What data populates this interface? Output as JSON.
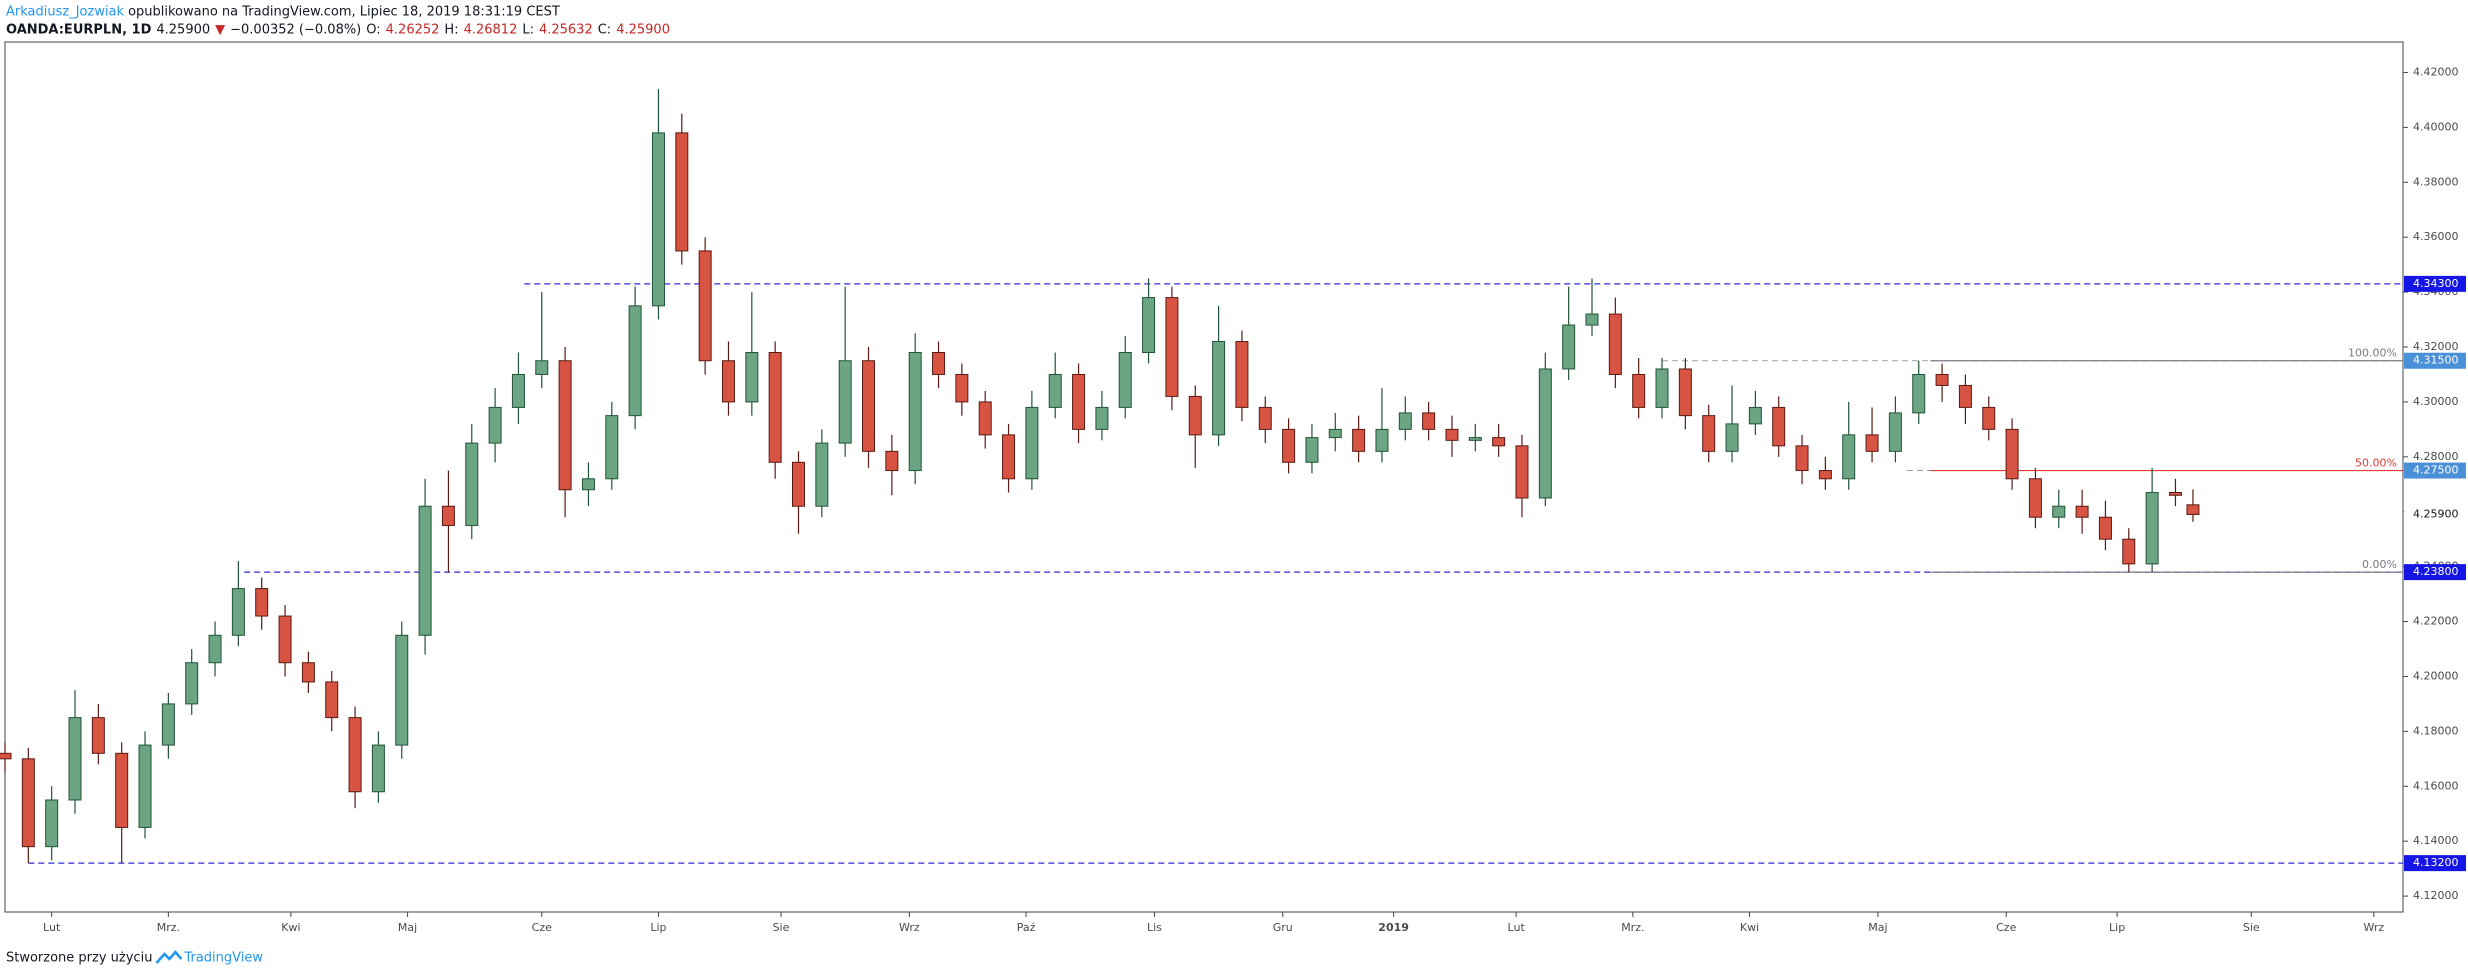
{
  "header": {
    "author": "Arkadiusz_Jozwiak",
    "published": "opublikowano na TradingView.com, Lipiec 18, 2019 18:31:19 CEST",
    "symbol": "OANDA:EURPLN, 1D",
    "price": "4.25900",
    "arrow": "▼",
    "change": "−0.00352 (−0.08%)",
    "o_label": "O:",
    "o": "4.26252",
    "h_label": "H:",
    "h": "4.26812",
    "l_label": "L:",
    "l": "4.25632",
    "c_label": "C:",
    "c": "4.25900"
  },
  "footer": {
    "text": "Stworzone przy użyciu",
    "brand": "TradingView"
  },
  "chart_data": {
    "type": "candlestick",
    "up_color": "#6ba583",
    "down_color": "#d75442",
    "x": [
      0,
      4,
      8,
      12,
      16,
      20,
      24,
      28,
      32,
      36,
      40,
      44,
      48,
      52,
      56,
      60,
      64,
      68,
      72,
      76,
      80,
      84,
      88,
      92,
      96,
      100,
      104,
      108,
      112,
      116,
      120,
      124,
      128,
      132,
      136,
      140,
      144,
      148,
      152,
      156,
      160,
      164,
      168,
      172,
      176,
      180,
      184,
      188,
      192,
      196,
      200,
      204,
      208,
      212,
      216,
      220,
      224,
      228,
      232,
      236,
      240,
      244,
      248,
      252,
      256,
      260,
      264,
      268,
      272,
      276,
      280,
      284,
      288,
      292,
      296,
      300,
      304,
      308,
      312,
      316,
      320,
      324,
      328,
      332,
      336,
      340,
      344,
      348,
      352,
      356,
      360,
      364,
      368,
      372,
      375
    ],
    "ohlc": [
      [
        4.172,
        4.176,
        4.165,
        4.17
      ],
      [
        4.17,
        4.174,
        4.132,
        4.138
      ],
      [
        4.138,
        4.16,
        4.133,
        4.155
      ],
      [
        4.155,
        4.195,
        4.15,
        4.185
      ],
      [
        4.185,
        4.19,
        4.168,
        4.172
      ],
      [
        4.172,
        4.176,
        4.132,
        4.145
      ],
      [
        4.145,
        4.18,
        4.141,
        4.175
      ],
      [
        4.175,
        4.194,
        4.17,
        4.19
      ],
      [
        4.19,
        4.21,
        4.186,
        4.205
      ],
      [
        4.205,
        4.22,
        4.2,
        4.215
      ],
      [
        4.215,
        4.242,
        4.211,
        4.232
      ],
      [
        4.232,
        4.236,
        4.217,
        4.222
      ],
      [
        4.222,
        4.226,
        4.2,
        4.205
      ],
      [
        4.205,
        4.209,
        4.194,
        4.198
      ],
      [
        4.198,
        4.202,
        4.18,
        4.185
      ],
      [
        4.185,
        4.189,
        4.152,
        4.158
      ],
      [
        4.158,
        4.18,
        4.154,
        4.175
      ],
      [
        4.175,
        4.22,
        4.17,
        4.215
      ],
      [
        4.215,
        4.272,
        4.208,
        4.262
      ],
      [
        4.262,
        4.275,
        4.238,
        4.255
      ],
      [
        4.255,
        4.292,
        4.25,
        4.285
      ],
      [
        4.285,
        4.305,
        4.278,
        4.298
      ],
      [
        4.298,
        4.318,
        4.292,
        4.31
      ],
      [
        4.31,
        4.34,
        4.305,
        4.315
      ],
      [
        4.315,
        4.32,
        4.258,
        4.268
      ],
      [
        4.268,
        4.278,
        4.262,
        4.272
      ],
      [
        4.272,
        4.3,
        4.268,
        4.295
      ],
      [
        4.295,
        4.342,
        4.29,
        4.335
      ],
      [
        4.335,
        4.414,
        4.33,
        4.398
      ],
      [
        4.398,
        4.405,
        4.35,
        4.355
      ],
      [
        4.355,
        4.36,
        4.31,
        4.315
      ],
      [
        4.315,
        4.322,
        4.295,
        4.3
      ],
      [
        4.3,
        4.34,
        4.295,
        4.318
      ],
      [
        4.318,
        4.322,
        4.272,
        4.278
      ],
      [
        4.278,
        4.282,
        4.252,
        4.262
      ],
      [
        4.262,
        4.29,
        4.258,
        4.285
      ],
      [
        4.285,
        4.342,
        4.28,
        4.315
      ],
      [
        4.315,
        4.32,
        4.276,
        4.282
      ],
      [
        4.282,
        4.288,
        4.266,
        4.275
      ],
      [
        4.275,
        4.325,
        4.27,
        4.318
      ],
      [
        4.318,
        4.322,
        4.305,
        4.31
      ],
      [
        4.31,
        4.314,
        4.295,
        4.3
      ],
      [
        4.3,
        4.304,
        4.283,
        4.288
      ],
      [
        4.288,
        4.292,
        4.267,
        4.272
      ],
      [
        4.272,
        4.304,
        4.268,
        4.298
      ],
      [
        4.298,
        4.318,
        4.294,
        4.31
      ],
      [
        4.31,
        4.314,
        4.285,
        4.29
      ],
      [
        4.29,
        4.304,
        4.286,
        4.298
      ],
      [
        4.298,
        4.324,
        4.294,
        4.318
      ],
      [
        4.318,
        4.345,
        4.314,
        4.338
      ],
      [
        4.338,
        4.342,
        4.297,
        4.302
      ],
      [
        4.302,
        4.306,
        4.276,
        4.288
      ],
      [
        4.288,
        4.335,
        4.284,
        4.322
      ],
      [
        4.322,
        4.326,
        4.293,
        4.298
      ],
      [
        4.298,
        4.302,
        4.285,
        4.29
      ],
      [
        4.29,
        4.294,
        4.274,
        4.278
      ],
      [
        4.278,
        4.292,
        4.274,
        4.287
      ],
      [
        4.287,
        4.296,
        4.282,
        4.29
      ],
      [
        4.29,
        4.295,
        4.278,
        4.282
      ],
      [
        4.282,
        4.305,
        4.278,
        4.29
      ],
      [
        4.29,
        4.302,
        4.286,
        4.296
      ],
      [
        4.296,
        4.3,
        4.286,
        4.29
      ],
      [
        4.29,
        4.295,
        4.28,
        4.286
      ],
      [
        4.286,
        4.292,
        4.282,
        4.287
      ],
      [
        4.287,
        4.292,
        4.28,
        4.284
      ],
      [
        4.284,
        4.288,
        4.258,
        4.265
      ],
      [
        4.265,
        4.318,
        4.262,
        4.312
      ],
      [
        4.312,
        4.342,
        4.308,
        4.328
      ],
      [
        4.328,
        4.345,
        4.324,
        4.332
      ],
      [
        4.332,
        4.338,
        4.305,
        4.31
      ],
      [
        4.31,
        4.316,
        4.294,
        4.298
      ],
      [
        4.298,
        4.316,
        4.294,
        4.312
      ],
      [
        4.312,
        4.316,
        4.29,
        4.295
      ],
      [
        4.295,
        4.299,
        4.278,
        4.282
      ],
      [
        4.282,
        4.306,
        4.278,
        4.292
      ],
      [
        4.292,
        4.304,
        4.288,
        4.298
      ],
      [
        4.298,
        4.302,
        4.28,
        4.284
      ],
      [
        4.284,
        4.288,
        4.27,
        4.275
      ],
      [
        4.275,
        4.28,
        4.268,
        4.272
      ],
      [
        4.272,
        4.3,
        4.268,
        4.288
      ],
      [
        4.288,
        4.298,
        4.278,
        4.282
      ],
      [
        4.282,
        4.302,
        4.278,
        4.296
      ],
      [
        4.296,
        4.315,
        4.292,
        4.31
      ],
      [
        4.31,
        4.314,
        4.3,
        4.306
      ],
      [
        4.306,
        4.31,
        4.292,
        4.298
      ],
      [
        4.298,
        4.302,
        4.286,
        4.29
      ],
      [
        4.29,
        4.294,
        4.268,
        4.272
      ],
      [
        4.272,
        4.276,
        4.254,
        4.258
      ],
      [
        4.258,
        4.268,
        4.254,
        4.262
      ],
      [
        4.262,
        4.268,
        4.252,
        4.258
      ],
      [
        4.258,
        4.264,
        4.246,
        4.25
      ],
      [
        4.25,
        4.254,
        4.238,
        4.241
      ],
      [
        4.241,
        4.276,
        4.238,
        4.267
      ],
      [
        4.267,
        4.272,
        4.262,
        4.266
      ],
      [
        4.26252,
        4.26812,
        4.25632,
        4.259
      ]
    ],
    "xlim": [
      0,
      411
    ],
    "ylim": [
      4.1142,
      4.4311
    ],
    "xticks": [
      {
        "value": 8,
        "label": "Lut"
      },
      {
        "value": 28,
        "label": "Mrz."
      },
      {
        "value": 49,
        "label": "Kwi"
      },
      {
        "value": 69,
        "label": "Maj"
      },
      {
        "value": 92,
        "label": "Cze"
      },
      {
        "value": 112,
        "label": "Lip"
      },
      {
        "value": 133,
        "label": "Sie"
      },
      {
        "value": 155,
        "label": "Wrz"
      },
      {
        "value": 175,
        "label": "Paź"
      },
      {
        "value": 197,
        "label": "Lis"
      },
      {
        "value": 219,
        "label": "Gru"
      },
      {
        "value": 238,
        "label": "2019"
      },
      {
        "value": 259,
        "label": "Lut"
      },
      {
        "value": 279,
        "label": "Mrz."
      },
      {
        "value": 299,
        "label": "Kwi"
      },
      {
        "value": 321,
        "label": "Maj"
      },
      {
        "value": 343,
        "label": "Cze"
      },
      {
        "value": 362,
        "label": "Lip"
      },
      {
        "value": 385,
        "label": "Sie"
      },
      {
        "value": 406,
        "label": "Wrz"
      }
    ],
    "yticks": [
      {
        "value": 4.12,
        "label": "4.12000"
      },
      {
        "value": 4.14,
        "label": "4.14000"
      },
      {
        "value": 4.16,
        "label": "4.16000"
      },
      {
        "value": 4.18,
        "label": "4.18000"
      },
      {
        "value": 4.2,
        "label": "4.20000"
      },
      {
        "value": 4.22,
        "label": "4.22000"
      },
      {
        "value": 4.24,
        "label": "4.24000"
      },
      {
        "value": 4.26,
        "label": "4.26000"
      },
      {
        "value": 4.28,
        "label": "4.28000"
      },
      {
        "value": 4.3,
        "label": "4.30000"
      },
      {
        "value": 4.32,
        "label": "4.32000"
      },
      {
        "value": 4.34,
        "label": "4.34000"
      },
      {
        "value": 4.36,
        "label": "4.36000"
      },
      {
        "value": 4.38,
        "label": "4.38000"
      },
      {
        "value": 4.4,
        "label": "4.40000"
      },
      {
        "value": 4.42,
        "label": "4.42000"
      }
    ],
    "hlines": [
      {
        "value": 4.343,
        "start": 89,
        "color": "#2b2bd6",
        "style": "dashed"
      },
      {
        "value": 4.238,
        "start": 41,
        "color": "#2b2bd6",
        "style": "dashed"
      },
      {
        "value": 4.132,
        "start": 4,
        "color": "#2b2bd6",
        "style": "dashed"
      },
      {
        "value": 4.315,
        "start": 284,
        "color": "#9aa0a6",
        "style": "dashed"
      },
      {
        "value": 4.275,
        "start": 326,
        "color": "#9aa0a6",
        "style": "dashed"
      }
    ],
    "fib": {
      "start": 330,
      "levels": [
        {
          "value": 4.315,
          "label": "100.00%",
          "color": "#787b86"
        },
        {
          "value": 4.275,
          "label": "50.00%",
          "color": "#e53935"
        },
        {
          "value": 4.238,
          "label": "0.00%",
          "color": "#787b86"
        }
      ]
    },
    "price_badges": [
      {
        "value": 4.343,
        "label": "4.34300",
        "color": "#1515e6"
      },
      {
        "value": 4.315,
        "label": "4.31500",
        "color": "#4a90d9"
      },
      {
        "value": 4.275,
        "label": "4.27500",
        "color": "#4a90d9"
      },
      {
        "value": 4.259,
        "label": "4.25900",
        "color": "#ffffff"
      },
      {
        "value": 4.238,
        "label": "4.23800",
        "color": "#1515e6"
      },
      {
        "value": 4.132,
        "label": "4.13200",
        "color": "#1515e6"
      }
    ]
  }
}
